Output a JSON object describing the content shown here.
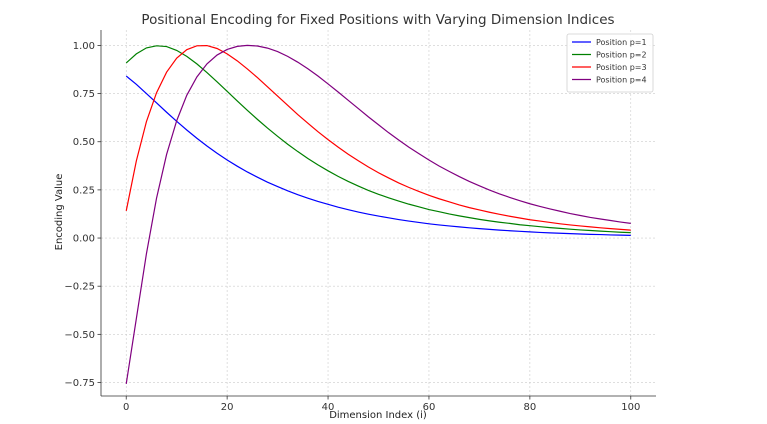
{
  "chart_data": {
    "type": "line",
    "title": "Positional Encoding for Fixed Positions with Varying Dimension Indices",
    "xlabel": "Dimension Index (i)",
    "ylabel": "Encoding Value",
    "xlim": [
      -5,
      105
    ],
    "ylim": [
      -0.82,
      1.08
    ],
    "xticks": [
      0,
      20,
      40,
      60,
      80,
      100
    ],
    "xtick_labels": [
      "0",
      "20",
      "40",
      "60",
      "80",
      "100"
    ],
    "yticks": [
      -0.75,
      -0.5,
      -0.25,
      0.0,
      0.25,
      0.5,
      0.75,
      1.0
    ],
    "ytick_labels": [
      "−0.75",
      "−0.50",
      "−0.25",
      "0.00",
      "0.25",
      "0.50",
      "0.75",
      "1.00"
    ],
    "grid": true,
    "legend_position": "top-right",
    "x": [
      0,
      2,
      4,
      6,
      8,
      10,
      12,
      14,
      16,
      18,
      20,
      22,
      24,
      26,
      28,
      30,
      32,
      34,
      36,
      38,
      40,
      42,
      44,
      46,
      48,
      50,
      52,
      54,
      56,
      58,
      60,
      62,
      64,
      66,
      68,
      70,
      72,
      74,
      76,
      78,
      80,
      82,
      84,
      86,
      88,
      90,
      92,
      94,
      96,
      98,
      100
    ],
    "series": [
      {
        "name": "Position p=1",
        "color": "#0000ff",
        "values": [
          0.841,
          0.798,
          0.75,
          0.702,
          0.653,
          0.606,
          0.561,
          0.518,
          0.478,
          0.44,
          0.405,
          0.373,
          0.343,
          0.316,
          0.29,
          0.267,
          0.245,
          0.225,
          0.207,
          0.19,
          0.175,
          0.16,
          0.147,
          0.135,
          0.124,
          0.114,
          0.105,
          0.096,
          0.088,
          0.081,
          0.074,
          0.068,
          0.063,
          0.058,
          0.053,
          0.049,
          0.045,
          0.041,
          0.038,
          0.035,
          0.032,
          0.029,
          0.027,
          0.025,
          0.023,
          0.021,
          0.019,
          0.018,
          0.016,
          0.015,
          0.014
        ]
      },
      {
        "name": "Position p=2",
        "color": "#008000",
        "values": [
          0.909,
          0.956,
          0.987,
          0.998,
          0.994,
          0.974,
          0.943,
          0.904,
          0.859,
          0.811,
          0.762,
          0.712,
          0.663,
          0.616,
          0.571,
          0.528,
          0.487,
          0.449,
          0.413,
          0.38,
          0.349,
          0.32,
          0.294,
          0.27,
          0.247,
          0.227,
          0.209,
          0.192,
          0.176,
          0.162,
          0.148,
          0.137,
          0.125,
          0.115,
          0.106,
          0.097,
          0.089,
          0.082,
          0.076,
          0.069,
          0.064,
          0.059,
          0.054,
          0.05,
          0.046,
          0.042,
          0.039,
          0.036,
          0.033,
          0.03,
          0.028
        ]
      },
      {
        "name": "Position p=3",
        "color": "#ff0000",
        "values": [
          0.141,
          0.4,
          0.604,
          0.754,
          0.861,
          0.934,
          0.978,
          0.998,
          0.999,
          0.984,
          0.956,
          0.92,
          0.878,
          0.833,
          0.785,
          0.737,
          0.689,
          0.641,
          0.596,
          0.552,
          0.511,
          0.472,
          0.435,
          0.401,
          0.369,
          0.339,
          0.312,
          0.286,
          0.263,
          0.242,
          0.222,
          0.204,
          0.188,
          0.172,
          0.158,
          0.146,
          0.134,
          0.123,
          0.113,
          0.104,
          0.095,
          0.088,
          0.081,
          0.074,
          0.068,
          0.063,
          0.058,
          0.053,
          0.049,
          0.045,
          0.041
        ]
      },
      {
        "name": "Position p=4",
        "color": "#800080",
        "values": [
          -0.757,
          -0.419,
          -0.082,
          0.206,
          0.434,
          0.609,
          0.741,
          0.836,
          0.904,
          0.95,
          0.979,
          0.995,
          1.0,
          0.997,
          0.986,
          0.968,
          0.943,
          0.913,
          0.879,
          0.841,
          0.8,
          0.758,
          0.715,
          0.672,
          0.629,
          0.588,
          0.547,
          0.509,
          0.472,
          0.438,
          0.405,
          0.374,
          0.346,
          0.319,
          0.294,
          0.271,
          0.249,
          0.229,
          0.211,
          0.194,
          0.178,
          0.164,
          0.151,
          0.139,
          0.127,
          0.117,
          0.107,
          0.099,
          0.091,
          0.083,
          0.076
        ]
      }
    ]
  }
}
